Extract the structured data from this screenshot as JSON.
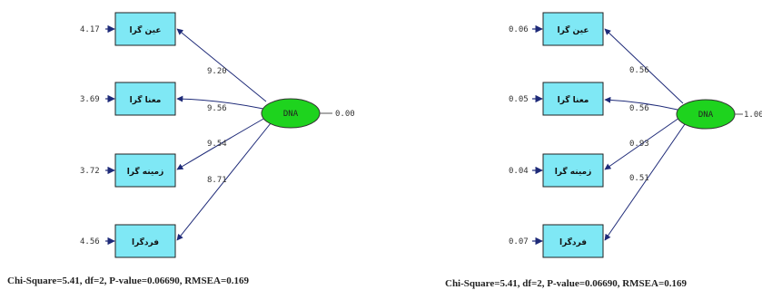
{
  "colors": {
    "box_fill": "#7fe8f5",
    "box_stroke": "#222222",
    "latent_fill": "#1ed31e",
    "latent_stroke": "#333333",
    "arrow": "#1e2a78",
    "error_arrow": "#1e2a78",
    "line": "#555555"
  },
  "left_model": {
    "latent": {
      "label": "DNA",
      "variance": "0.00"
    },
    "indicators": [
      {
        "label": "عین گرا",
        "error": "4.17",
        "loading": "9.20"
      },
      {
        "label": "معنا گرا",
        "error": "3.69",
        "loading": "9.56"
      },
      {
        "label": "زمینه گرا",
        "error": "3.72",
        "loading": "9.54"
      },
      {
        "label": "فردگرا",
        "error": "4.56",
        "loading": "8.71"
      }
    ],
    "fit": "Chi-Square=5.41, df=2, P-value=0.06690, RMSEA=0.169"
  },
  "right_model": {
    "latent": {
      "label": "DNA",
      "variance": "1.00"
    },
    "indicators": [
      {
        "label": "عین گرا",
        "error": "0.06",
        "loading": "0.56"
      },
      {
        "label": "معنا گرا",
        "error": "0.05",
        "loading": "0.56"
      },
      {
        "label": "زمینه گرا",
        "error": "0.04",
        "loading": "0.93"
      },
      {
        "label": "فردگرا",
        "error": "0.07",
        "loading": "0.51"
      }
    ],
    "fit": "Chi-Square=5.41, df=2, P-value=0.06690, RMSEA=0.169"
  }
}
